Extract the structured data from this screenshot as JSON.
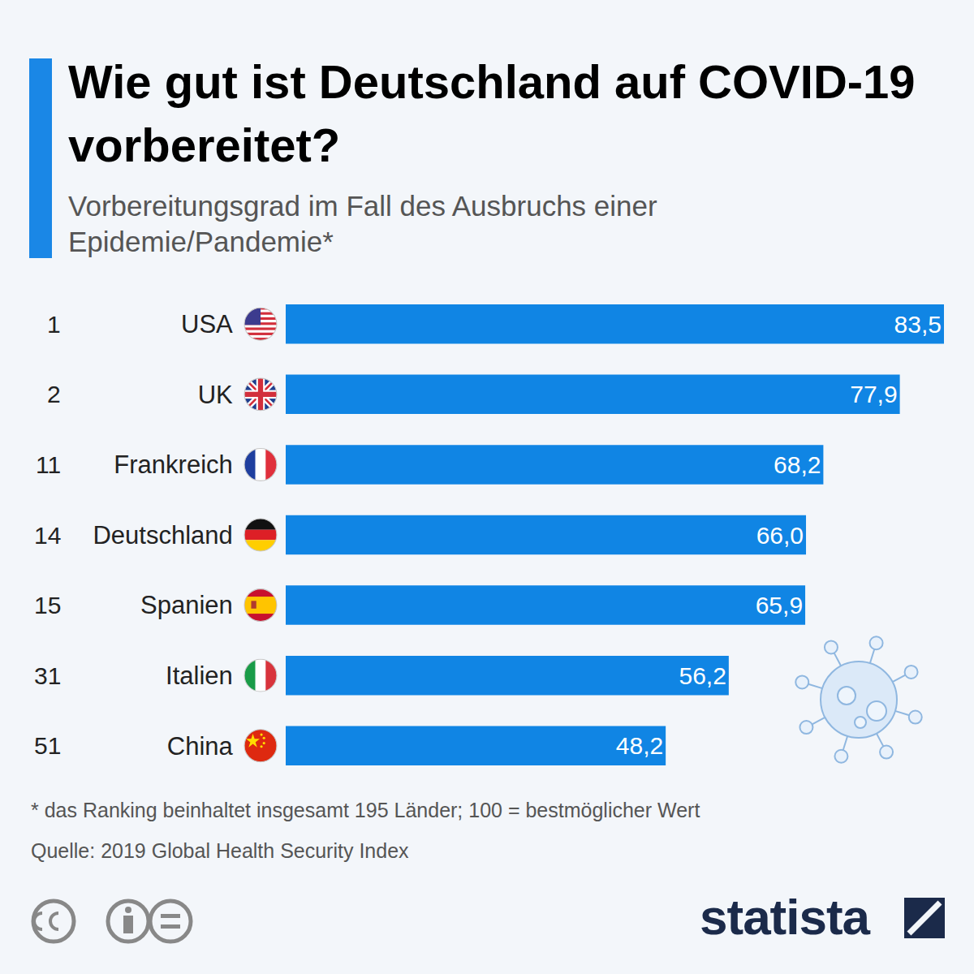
{
  "chart_data": {
    "type": "bar",
    "title": "Wie gut ist Deutschland auf COVID-19 vorbereitet?",
    "subtitle": "Vorbereitungsgrad im Fall des Ausbruchs einer Epidemie/Pandemie*",
    "orientation": "horizontal",
    "categories": [
      "USA",
      "UK",
      "Frankreich",
      "Deutschland",
      "Spanien",
      "Italien",
      "China"
    ],
    "ranks": [
      1,
      2,
      11,
      14,
      15,
      31,
      51
    ],
    "values": [
      83.5,
      77.9,
      68.2,
      66.0,
      65.9,
      56.2,
      48.2
    ],
    "value_labels": [
      "83,5",
      "77,9",
      "68,2",
      "66,0",
      "65,9",
      "56,2",
      "48,2"
    ],
    "color": "#1085e4",
    "xlim": [
      0,
      83.5
    ],
    "data_labels": true,
    "tick_labels": "y",
    "grid": false,
    "footnote": "* das Ranking beinhaltet insgesamt 195 Länder; 100 = bestmöglicher Wert",
    "source": "Quelle: 2019 Global Health Security Index",
    "logo": "statista"
  }
}
